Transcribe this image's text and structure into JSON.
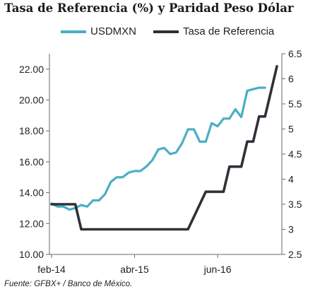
{
  "chart_data": {
    "type": "line",
    "title": "Tasa de Referencia (%) y Paridad Peso Dólar",
    "source": "Fuente: GFBX+ / Banco de México.",
    "x_tick_labels": [
      "feb-14",
      "abr-15",
      "jun-16"
    ],
    "x_tick_index": [
      0,
      14,
      28
    ],
    "left_axis": {
      "ylim": [
        10,
        23
      ],
      "ticks": [
        "10.00",
        "12.00",
        "14.00",
        "16.00",
        "18.00",
        "20.00",
        "22.00"
      ]
    },
    "right_axis": {
      "ylim": [
        2.5,
        6.5
      ],
      "ticks": [
        "2.5",
        "3",
        "3.5",
        "4",
        "4.5",
        "5",
        "5.5",
        "6",
        "6.5"
      ]
    },
    "legend_position": "top",
    "grid": false,
    "series": [
      {
        "name": "USDMXN",
        "axis": "left",
        "color": "#4aafc4",
        "values": [
          13.3,
          13.1,
          13.1,
          12.9,
          13.0,
          13.2,
          13.1,
          13.5,
          13.5,
          13.9,
          14.7,
          15.0,
          15.0,
          15.3,
          15.4,
          15.4,
          15.7,
          16.1,
          16.8,
          16.9,
          16.5,
          16.6,
          17.2,
          18.1,
          18.1,
          17.3,
          17.3,
          18.5,
          18.3,
          18.8,
          18.8,
          19.4,
          18.9,
          20.6,
          20.7,
          20.8,
          20.8
        ]
      },
      {
        "name": "Tasa de Referencia",
        "axis": "right",
        "color": "#2e3138",
        "values": [
          3.5,
          3.5,
          3.5,
          3.5,
          3.5,
          3.0,
          3.0,
          3.0,
          3.0,
          3.0,
          3.0,
          3.0,
          3.0,
          3.0,
          3.0,
          3.0,
          3.0,
          3.0,
          3.0,
          3.0,
          3.0,
          3.0,
          3.0,
          3.0,
          3.25,
          3.5,
          3.75,
          3.75,
          3.75,
          3.75,
          4.25,
          4.25,
          4.25,
          4.75,
          4.75,
          5.25,
          5.25,
          5.75,
          6.25
        ]
      }
    ]
  }
}
